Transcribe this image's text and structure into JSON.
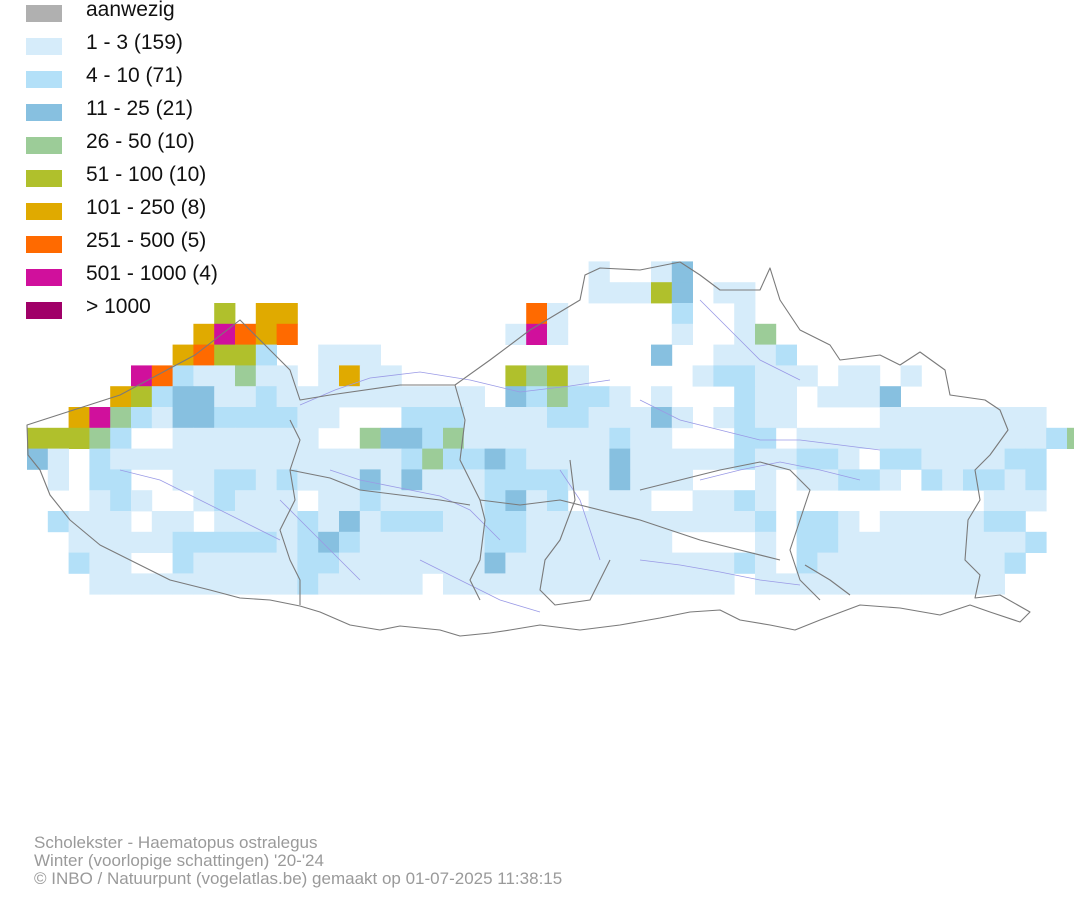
{
  "legend": {
    "items": [
      {
        "label": "aanwezig",
        "color": "#b0b0b0"
      },
      {
        "label": "1 - 3 (159)",
        "color": "#d6ecfa"
      },
      {
        "label": "4 - 10 (71)",
        "color": "#b3e0f8"
      },
      {
        "label": "11 - 25 (21)",
        "color": "#87c0e0"
      },
      {
        "label": "26 - 50 (10)",
        "color": "#9ccc98"
      },
      {
        "label": "51 - 100 (10)",
        "color": "#b0c02c"
      },
      {
        "label": "101 - 250 (8)",
        "color": "#e0aa00"
      },
      {
        "label": "251 - 500 (5)",
        "color": "#ff6a00"
      },
      {
        "label": "501 - 1000 (4)",
        "color": "#d0109c"
      },
      {
        "label": "> 1000",
        "color": "#a00068"
      }
    ]
  },
  "map": {
    "colors": {
      "border": "#7a7a7a",
      "river": "#9a9ae6"
    }
  },
  "footer": {
    "species": "Scholekster - Haematopus ostralegus",
    "period": "Winter (voorlopige schattingen) '20-'24",
    "credit": "© INBO / Natuurpunt (vogelatlas.be) gemaakt op 01-07-2025 11:38:15"
  }
}
